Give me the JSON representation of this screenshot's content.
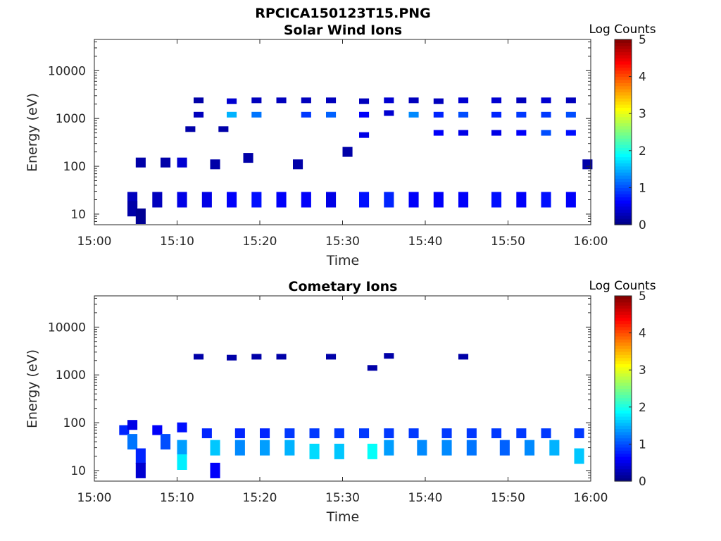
{
  "figure_title": "RPCICA150123T15.PNG",
  "colors": {
    "background_cell": "#00007f",
    "axis": "#262626"
  },
  "chart_data": [
    {
      "type": "heatmap",
      "title": "Solar Wind Ions",
      "xlabel": "Time",
      "ylabel": "Energy (eV)",
      "x_ticks": [
        "15:00",
        "15:10",
        "15:20",
        "15:30",
        "15:40",
        "15:50",
        "16:00"
      ],
      "xlim": [
        "15:00",
        "16:00"
      ],
      "y_scale": "log",
      "y_ticks": [
        "10",
        "100",
        "1000",
        "10000"
      ],
      "ylim": [
        6,
        45000
      ],
      "colorbar": {
        "title": "Log Counts",
        "range": [
          0,
          5
        ],
        "ticks": [
          "0",
          "1",
          "2",
          "3",
          "4",
          "5"
        ],
        "colormap": "jet"
      },
      "cells": [
        {
          "t": "15:04",
          "e": 20,
          "v": 0.3
        },
        {
          "t": "15:04",
          "e": 13,
          "v": 0.2
        },
        {
          "t": "15:05",
          "e": 9,
          "v": 0.1
        },
        {
          "t": "15:05",
          "e": 120,
          "v": 0.2
        },
        {
          "t": "15:07",
          "e": 20,
          "v": 0.3
        },
        {
          "t": "15:08",
          "e": 120,
          "v": 0.2
        },
        {
          "t": "15:10",
          "e": 20,
          "v": 0.5
        },
        {
          "t": "15:10",
          "e": 120,
          "v": 0.4
        },
        {
          "t": "15:11",
          "e": 600,
          "v": 0.2
        },
        {
          "t": "15:12",
          "e": 2400,
          "v": 0.2
        },
        {
          "t": "15:12",
          "e": 1200,
          "v": 0.3
        },
        {
          "t": "15:13",
          "e": 20,
          "v": 0.5
        },
        {
          "t": "15:14",
          "e": 110,
          "v": 0.2
        },
        {
          "t": "15:15",
          "e": 600,
          "v": 0.2
        },
        {
          "t": "15:16",
          "e": 2300,
          "v": 0.4
        },
        {
          "t": "15:16",
          "e": 1200,
          "v": 1.5
        },
        {
          "t": "15:16",
          "e": 20,
          "v": 0.6
        },
        {
          "t": "15:18",
          "e": 150,
          "v": 0.2
        },
        {
          "t": "15:19",
          "e": 2400,
          "v": 0.3
        },
        {
          "t": "15:19",
          "e": 1200,
          "v": 1.2
        },
        {
          "t": "15:19",
          "e": 20,
          "v": 0.7
        },
        {
          "t": "15:22",
          "e": 2400,
          "v": 0.3
        },
        {
          "t": "15:22",
          "e": 20,
          "v": 0.6
        },
        {
          "t": "15:24",
          "e": 110,
          "v": 0.2
        },
        {
          "t": "15:25",
          "e": 2400,
          "v": 0.3
        },
        {
          "t": "15:25",
          "e": 1200,
          "v": 0.9
        },
        {
          "t": "15:25",
          "e": 20,
          "v": 0.6
        },
        {
          "t": "15:28",
          "e": 2400,
          "v": 0.3
        },
        {
          "t": "15:28",
          "e": 1200,
          "v": 1.1
        },
        {
          "t": "15:28",
          "e": 20,
          "v": 0.5
        },
        {
          "t": "15:30",
          "e": 200,
          "v": 0.2
        },
        {
          "t": "15:32",
          "e": 2300,
          "v": 0.3
        },
        {
          "t": "15:32",
          "e": 1200,
          "v": 0.6
        },
        {
          "t": "15:32",
          "e": 450,
          "v": 0.5
        },
        {
          "t": "15:32",
          "e": 20,
          "v": 0.7
        },
        {
          "t": "15:35",
          "e": 2400,
          "v": 0.4
        },
        {
          "t": "15:35",
          "e": 1300,
          "v": 0.4
        },
        {
          "t": "15:35",
          "e": 20,
          "v": 0.8
        },
        {
          "t": "15:38",
          "e": 2400,
          "v": 0.3
        },
        {
          "t": "15:38",
          "e": 1200,
          "v": 1.3
        },
        {
          "t": "15:38",
          "e": 20,
          "v": 0.6
        },
        {
          "t": "15:41",
          "e": 2300,
          "v": 0.3
        },
        {
          "t": "15:41",
          "e": 1200,
          "v": 0.8
        },
        {
          "t": "15:41",
          "e": 500,
          "v": 0.6
        },
        {
          "t": "15:41",
          "e": 20,
          "v": 0.6
        },
        {
          "t": "15:44",
          "e": 2400,
          "v": 0.4
        },
        {
          "t": "15:44",
          "e": 1200,
          "v": 1.0
        },
        {
          "t": "15:44",
          "e": 500,
          "v": 0.5
        },
        {
          "t": "15:44",
          "e": 20,
          "v": 0.6
        },
        {
          "t": "15:48",
          "e": 2400,
          "v": 0.4
        },
        {
          "t": "15:48",
          "e": 1200,
          "v": 0.8
        },
        {
          "t": "15:48",
          "e": 500,
          "v": 0.5
        },
        {
          "t": "15:48",
          "e": 20,
          "v": 0.7
        },
        {
          "t": "15:51",
          "e": 2400,
          "v": 0.3
        },
        {
          "t": "15:51",
          "e": 1200,
          "v": 0.9
        },
        {
          "t": "15:51",
          "e": 500,
          "v": 0.6
        },
        {
          "t": "15:51",
          "e": 20,
          "v": 0.6
        },
        {
          "t": "15:54",
          "e": 2400,
          "v": 0.4
        },
        {
          "t": "15:54",
          "e": 1200,
          "v": 0.9
        },
        {
          "t": "15:54",
          "e": 500,
          "v": 1.0
        },
        {
          "t": "15:54",
          "e": 20,
          "v": 0.7
        },
        {
          "t": "15:57",
          "e": 2400,
          "v": 0.3
        },
        {
          "t": "15:57",
          "e": 1200,
          "v": 1.0
        },
        {
          "t": "15:57",
          "e": 500,
          "v": 0.7
        },
        {
          "t": "15:57",
          "e": 20,
          "v": 0.6
        },
        {
          "t": "15:59",
          "e": 110,
          "v": 0.2
        }
      ]
    },
    {
      "type": "heatmap",
      "title": "Cometary Ions",
      "xlabel": "Time",
      "ylabel": "Energy (eV)",
      "x_ticks": [
        "15:00",
        "15:10",
        "15:20",
        "15:30",
        "15:40",
        "15:50",
        "16:00"
      ],
      "xlim": [
        "15:00",
        "16:00"
      ],
      "y_scale": "log",
      "y_ticks": [
        "10",
        "100",
        "1000",
        "10000"
      ],
      "ylim": [
        6,
        45000
      ],
      "colorbar": {
        "title": "Log Counts",
        "range": [
          0,
          5
        ],
        "ticks": [
          "0",
          "1",
          "2",
          "3",
          "4",
          "5"
        ],
        "colormap": "jet"
      },
      "cells": [
        {
          "t": "15:03",
          "e": 70,
          "v": 0.8
        },
        {
          "t": "15:04",
          "e": 90,
          "v": 0.5
        },
        {
          "t": "15:04",
          "e": 40,
          "v": 1.2
        },
        {
          "t": "15:05",
          "e": 20,
          "v": 0.8
        },
        {
          "t": "15:05",
          "e": 10,
          "v": 0.4
        },
        {
          "t": "15:07",
          "e": 70,
          "v": 0.6
        },
        {
          "t": "15:08",
          "e": 40,
          "v": 1.0
        },
        {
          "t": "15:10",
          "e": 80,
          "v": 0.7
        },
        {
          "t": "15:10",
          "e": 30,
          "v": 1.4
        },
        {
          "t": "15:10",
          "e": 15,
          "v": 1.8
        },
        {
          "t": "15:12",
          "e": 2400,
          "v": 0.2
        },
        {
          "t": "15:13",
          "e": 60,
          "v": 0.8
        },
        {
          "t": "15:14",
          "e": 30,
          "v": 1.6
        },
        {
          "t": "15:14",
          "e": 10,
          "v": 0.6
        },
        {
          "t": "15:16",
          "e": 2300,
          "v": 0.2
        },
        {
          "t": "15:17",
          "e": 60,
          "v": 0.8
        },
        {
          "t": "15:17",
          "e": 30,
          "v": 1.3
        },
        {
          "t": "15:19",
          "e": 2400,
          "v": 0.2
        },
        {
          "t": "15:20",
          "e": 60,
          "v": 0.8
        },
        {
          "t": "15:20",
          "e": 30,
          "v": 1.4
        },
        {
          "t": "15:22",
          "e": 2400,
          "v": 0.2
        },
        {
          "t": "15:23",
          "e": 60,
          "v": 0.9
        },
        {
          "t": "15:23",
          "e": 30,
          "v": 1.5
        },
        {
          "t": "15:26",
          "e": 60,
          "v": 0.9
        },
        {
          "t": "15:26",
          "e": 25,
          "v": 1.7
        },
        {
          "t": "15:28",
          "e": 2400,
          "v": 0.2
        },
        {
          "t": "15:29",
          "e": 60,
          "v": 0.9
        },
        {
          "t": "15:29",
          "e": 25,
          "v": 1.6
        },
        {
          "t": "15:32",
          "e": 60,
          "v": 0.9
        },
        {
          "t": "15:33",
          "e": 25,
          "v": 1.9
        },
        {
          "t": "15:33",
          "e": 1400,
          "v": 0.2
        },
        {
          "t": "15:35",
          "e": 2500,
          "v": 0.2
        },
        {
          "t": "15:35",
          "e": 60,
          "v": 0.9
        },
        {
          "t": "15:35",
          "e": 30,
          "v": 1.4
        },
        {
          "t": "15:38",
          "e": 60,
          "v": 0.9
        },
        {
          "t": "15:39",
          "e": 30,
          "v": 1.3
        },
        {
          "t": "15:42",
          "e": 60,
          "v": 0.9
        },
        {
          "t": "15:42",
          "e": 30,
          "v": 1.3
        },
        {
          "t": "15:44",
          "e": 2400,
          "v": 0.2
        },
        {
          "t": "15:45",
          "e": 60,
          "v": 0.9
        },
        {
          "t": "15:45",
          "e": 30,
          "v": 1.2
        },
        {
          "t": "15:48",
          "e": 60,
          "v": 0.9
        },
        {
          "t": "15:49",
          "e": 30,
          "v": 1.1
        },
        {
          "t": "15:51",
          "e": 60,
          "v": 0.9
        },
        {
          "t": "15:52",
          "e": 30,
          "v": 1.3
        },
        {
          "t": "15:54",
          "e": 60,
          "v": 0.9
        },
        {
          "t": "15:55",
          "e": 30,
          "v": 1.5
        },
        {
          "t": "15:58",
          "e": 60,
          "v": 0.9
        },
        {
          "t": "15:58",
          "e": 20,
          "v": 1.6
        }
      ]
    }
  ]
}
